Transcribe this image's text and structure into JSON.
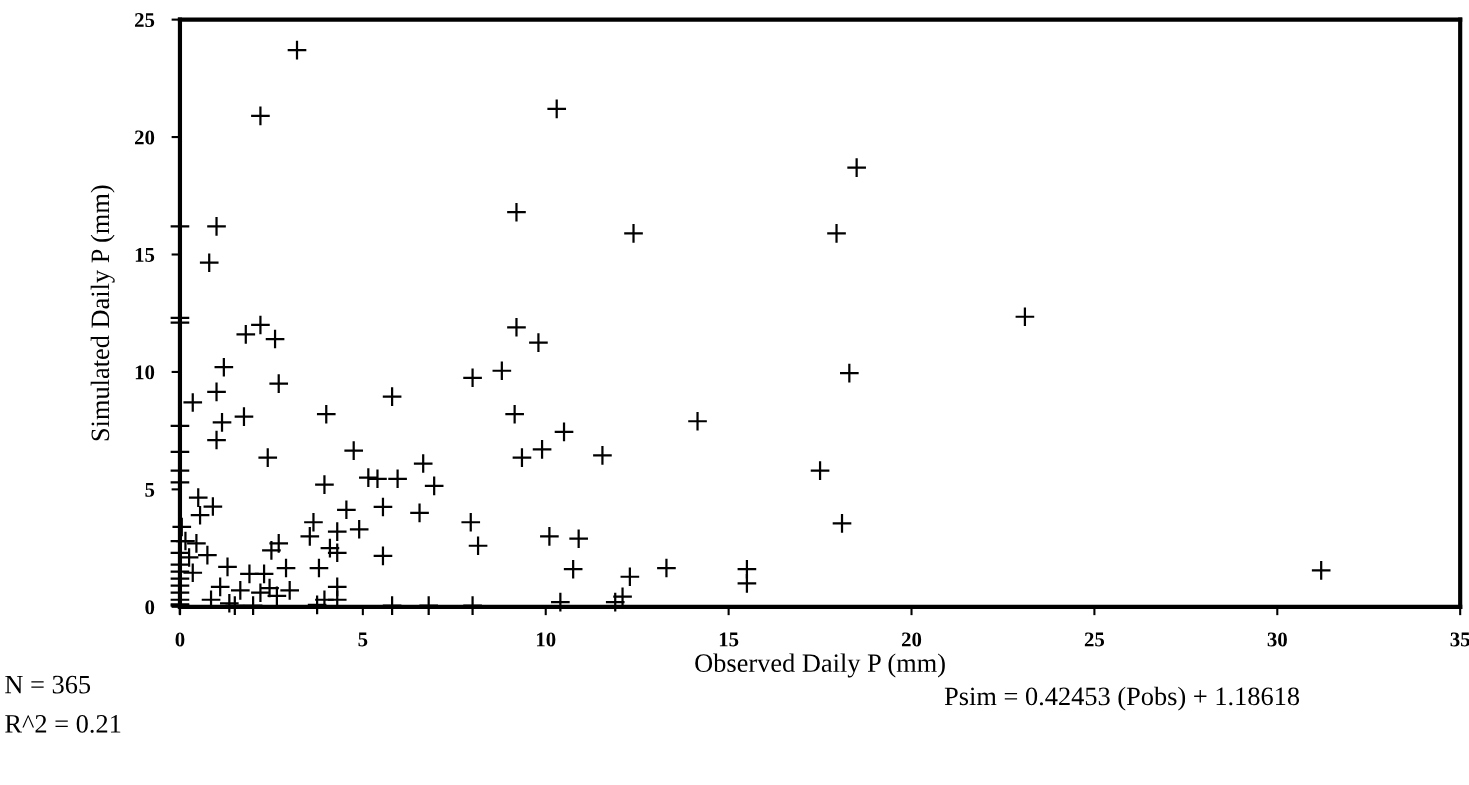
{
  "chart_data": {
    "type": "scatter",
    "xlabel": "Observed Daily P (mm)",
    "ylabel": "Simulated Daily P (mm)",
    "xlim": [
      0,
      35
    ],
    "ylim": [
      0,
      25
    ],
    "xticks": [
      0,
      5,
      10,
      15,
      20,
      25,
      30,
      35
    ],
    "yticks": [
      0,
      5,
      10,
      15,
      20,
      25
    ],
    "grid": false,
    "marker": "cross",
    "annotations": [
      "N = 365",
      "R^2 = 0.21",
      "Psim = 0.42453 (Pobs) + 1.18618"
    ],
    "series": [
      {
        "color": "#000000",
        "x": [
          3.2,
          2.2,
          10.3,
          9.2,
          18.5,
          12.4,
          17.95,
          23.1,
          1.0,
          0.8,
          2.2,
          1.8,
          2.6,
          9.2,
          9.8,
          1.2,
          8.8,
          8.0,
          2.7,
          1.0,
          5.8,
          0.35,
          1.75,
          1.15,
          4.0,
          9.15,
          1.0,
          2.4,
          4.75,
          6.65,
          9.35,
          9.9,
          10.5,
          0.5,
          0.9,
          0.55,
          3.95,
          5.15,
          5.4,
          5.95,
          6.95,
          4.55,
          5.55,
          6.55,
          3.65,
          3.55,
          4.3,
          4.9,
          7.95,
          8.15,
          5.55,
          2.7,
          2.5,
          4.1,
          4.3,
          3.8,
          0.75,
          10.1,
          11.55,
          14.15,
          18.3,
          17.5,
          18.1,
          10.9,
          10.75,
          12.3,
          13.3,
          15.5,
          15.5,
          12.1,
          11.9,
          10.4,
          31.2,
          3.95,
          4.3,
          4.3,
          2.9,
          2.3,
          1.9,
          1.3,
          1.1,
          1.65,
          2.2,
          2.65,
          3.0,
          2.45,
          0.85,
          1.35,
          3.75,
          0.35,
          0.25,
          0.45,
          0.15,
          0.05,
          0,
          0,
          0,
          0,
          0,
          0,
          0,
          0,
          0,
          0,
          0,
          0,
          0,
          0,
          0,
          0,
          0,
          1.5,
          2.0,
          5.8,
          6.8,
          8.0
        ],
        "values": [
          23.7,
          20.9,
          21.2,
          16.8,
          18.7,
          15.9,
          15.9,
          12.35,
          16.2,
          14.65,
          12.0,
          11.6,
          11.4,
          11.9,
          11.25,
          10.2,
          10.05,
          9.75,
          9.5,
          9.15,
          8.95,
          8.7,
          8.1,
          7.85,
          8.2,
          8.2,
          7.1,
          6.35,
          6.65,
          6.1,
          6.35,
          6.7,
          7.45,
          4.65,
          4.27,
          3.9,
          5.2,
          5.5,
          5.45,
          5.45,
          5.15,
          4.13,
          4.25,
          4.0,
          3.6,
          3.0,
          3.2,
          3.3,
          3.6,
          2.6,
          2.17,
          2.7,
          2.4,
          2.5,
          2.3,
          1.65,
          2.2,
          3.0,
          6.45,
          7.9,
          9.95,
          5.8,
          3.55,
          2.9,
          1.6,
          1.28,
          1.65,
          1.6,
          1.0,
          0.43,
          0.2,
          0.2,
          1.55,
          0.3,
          0.85,
          0.3,
          1.65,
          1.4,
          1.4,
          1.7,
          0.85,
          0.7,
          0.6,
          0.47,
          0.7,
          0.8,
          0.3,
          0.15,
          0.08,
          1.45,
          2.1,
          2.7,
          2.8,
          3.4,
          16.2,
          12.3,
          12.1,
          7.7,
          6.6,
          5.8,
          5.3,
          2.8,
          2.3,
          1.8,
          1.5,
          1.2,
          0.9,
          0.6,
          0.3,
          0.1,
          0.05,
          0.05,
          0.05,
          0.05,
          0.05,
          0.05
        ]
      }
    ]
  }
}
